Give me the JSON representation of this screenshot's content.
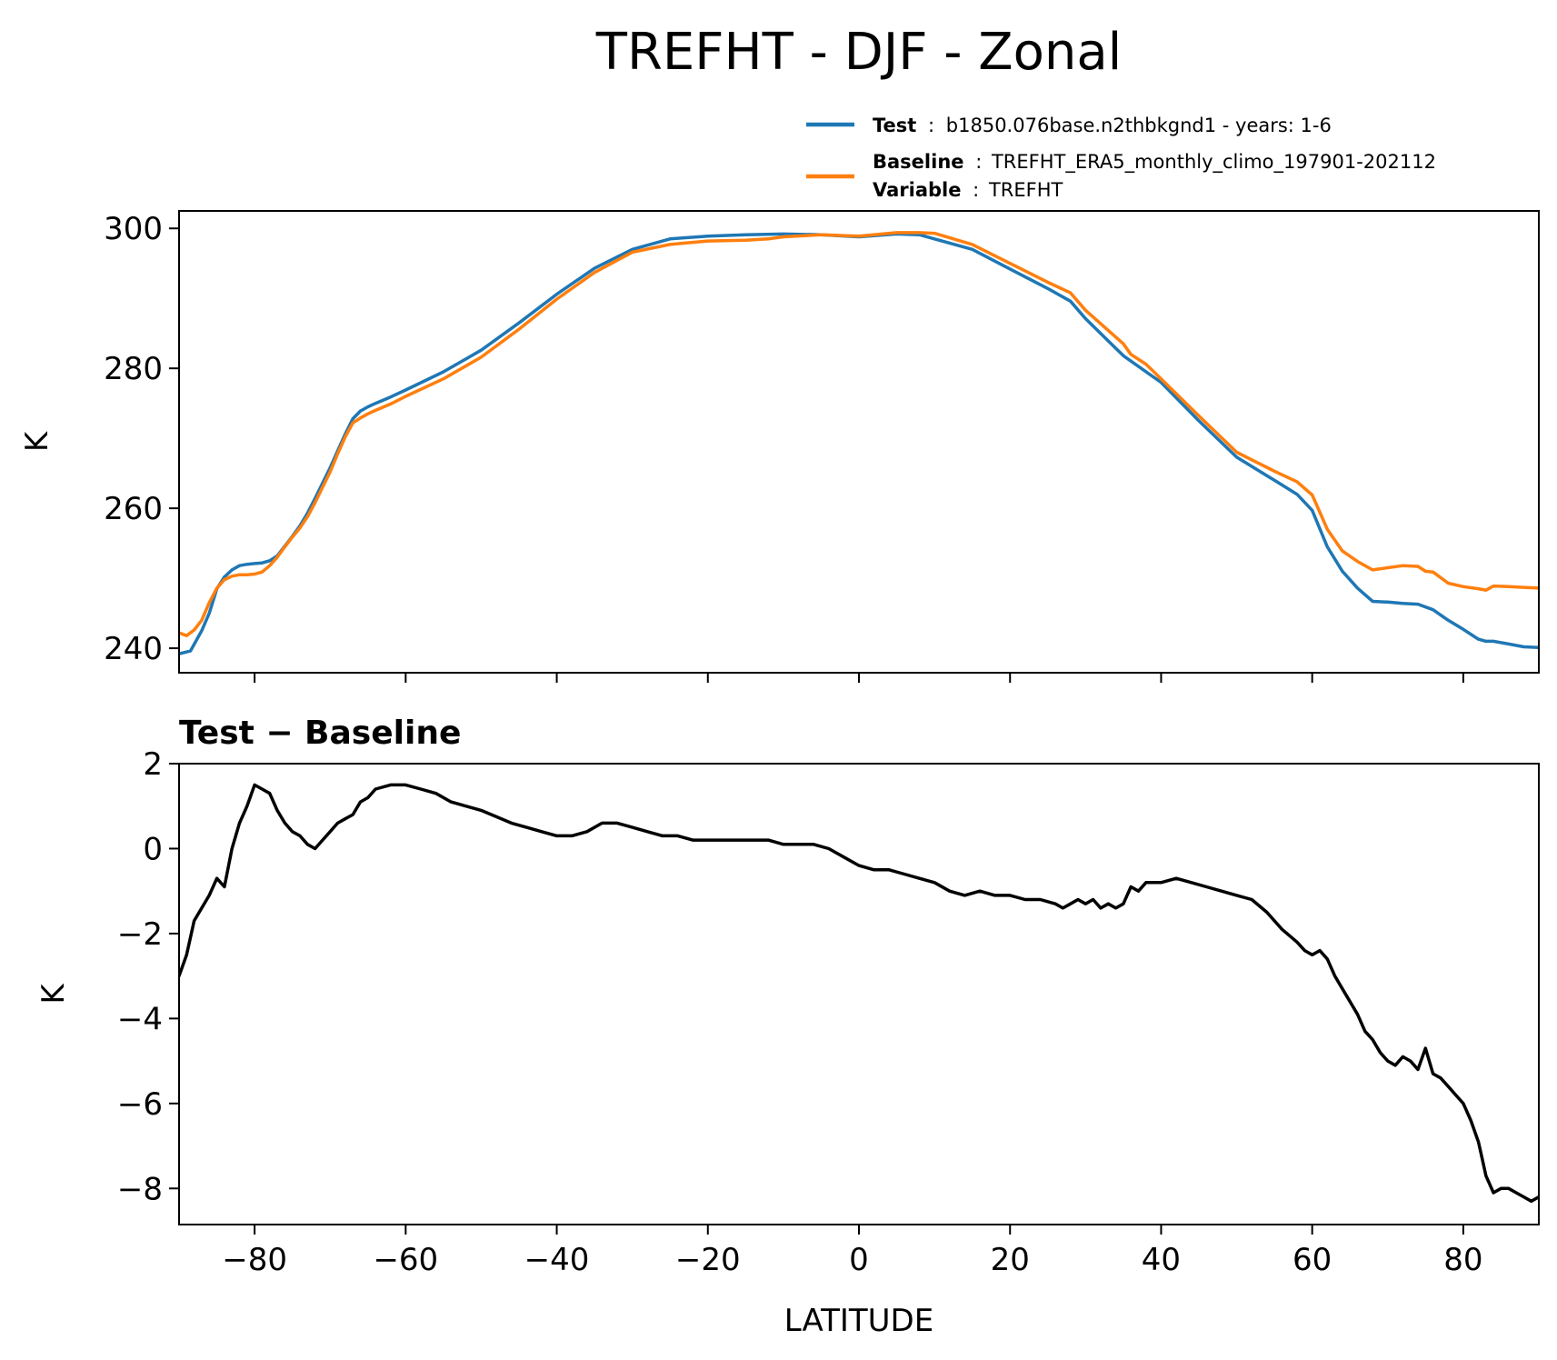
{
  "title": "TREFHT - DJF - Zonal",
  "legend": {
    "test_key": "Test",
    "test_value": "b1850.076base.n2thbkgnd1 - years: 1-6",
    "baseline_key": "Baseline",
    "baseline_value": "TREFHT_ERA5_monthly_climo_197901-202112",
    "variable_key": "Variable",
    "variable_value": "TREFHT",
    "sep": ":"
  },
  "colors": {
    "test": "#1f77b4",
    "baseline": "#ff7f0e",
    "diff": "#000000",
    "axis": "#000000"
  },
  "chart_data": [
    {
      "type": "line",
      "ylabel": "K",
      "xlim": [
        -90,
        90
      ],
      "ylim": [
        236.5,
        302.5
      ],
      "yticks": [
        240,
        260,
        280,
        300
      ],
      "xticks": [
        -80,
        -60,
        -40,
        -20,
        0,
        20,
        40,
        60,
        80
      ],
      "grid": false,
      "legend_position": "above-right",
      "series": [
        {
          "name": "Test",
          "color": "#1f77b4",
          "x": [
            -90,
            -88.5,
            -87,
            -86,
            -85,
            -84,
            -83,
            -82,
            -81,
            -80,
            -79,
            -78,
            -77,
            -76,
            -75,
            -74,
            -73,
            -72,
            -71,
            -70,
            -69,
            -68,
            -67,
            -66,
            -65,
            -64,
            -62,
            -60,
            -55,
            -50,
            -45,
            -40,
            -35,
            -30,
            -25,
            -20,
            -15,
            -10,
            -5,
            0,
            5,
            8,
            10,
            15,
            20,
            25,
            28,
            30,
            35,
            40,
            45,
            50,
            55,
            58,
            60,
            62,
            64,
            66,
            68,
            70,
            72,
            74,
            76,
            78,
            80,
            82,
            83,
            84,
            86,
            88,
            90
          ],
          "y": [
            239.2,
            239.6,
            242.5,
            245,
            248.5,
            250.2,
            251.2,
            251.8,
            252,
            252.1,
            252.2,
            252.5,
            253.2,
            254.6,
            256,
            257.5,
            259.3,
            261.4,
            263.6,
            265.8,
            268.2,
            270.6,
            272.8,
            273.9,
            274.5,
            275.0,
            275.9,
            276.9,
            279.5,
            282.6,
            286.5,
            290.6,
            294.3,
            297.0,
            298.5,
            298.9,
            299.1,
            299.2,
            299.1,
            298.8,
            299.2,
            299.1,
            298.5,
            297.0,
            294.2,
            291.4,
            289.6,
            287.1,
            281.8,
            278.0,
            272.5,
            267.3,
            264.0,
            262.0,
            259.7,
            254.5,
            251.0,
            248.6,
            246.7,
            246.6,
            246.4,
            246.3,
            245.5,
            244.0,
            242.7,
            241.3,
            241.0,
            241.0,
            240.6,
            240.2,
            240.1
          ]
        },
        {
          "name": "Baseline",
          "color": "#ff7f0e",
          "x": [
            -90,
            -89,
            -88,
            -87,
            -86,
            -85,
            -84,
            -83,
            -82,
            -81,
            -80,
            -79,
            -78,
            -77,
            -76,
            -75,
            -74,
            -73,
            -72,
            -71,
            -70,
            -69,
            -68,
            -67,
            -66,
            -65,
            -64,
            -62,
            -60,
            -55,
            -50,
            -45,
            -40,
            -35,
            -30,
            -25,
            -20,
            -15,
            -12,
            -10,
            -5,
            0,
            5,
            8,
            10,
            15,
            20,
            25,
            28,
            30,
            35,
            36,
            38,
            40,
            45,
            50,
            55,
            58,
            60,
            62,
            64,
            66,
            68,
            70,
            72,
            74,
            75,
            76,
            78,
            80,
            82,
            83,
            84,
            86,
            88,
            90
          ],
          "y": [
            242.2,
            241.8,
            242.6,
            244.0,
            246.5,
            248.6,
            249.8,
            250.3,
            250.5,
            250.5,
            250.6,
            250.9,
            251.8,
            253.0,
            254.5,
            255.9,
            257.2,
            258.8,
            260.8,
            263.0,
            265.2,
            267.8,
            270.2,
            272.2,
            272.9,
            273.5,
            274.0,
            274.9,
            276.0,
            278.5,
            281.6,
            285.6,
            289.9,
            293.7,
            296.6,
            297.7,
            298.2,
            298.3,
            298.5,
            298.8,
            299.1,
            298.9,
            299.4,
            299.4,
            299.3,
            297.7,
            295.0,
            292.3,
            290.8,
            288.3,
            283.5,
            282.0,
            280.6,
            278.5,
            273.2,
            268.0,
            265.3,
            263.8,
            261.9,
            257.0,
            253.9,
            252.4,
            251.2,
            251.5,
            251.8,
            251.7,
            251.0,
            250.9,
            249.3,
            248.8,
            248.5,
            248.3,
            248.9,
            248.8,
            248.7,
            248.6
          ]
        }
      ]
    },
    {
      "type": "line",
      "title": "Test − Baseline",
      "xlabel": "LATITUDE",
      "ylabel": "K",
      "xlim": [
        -90,
        90
      ],
      "ylim": [
        -8.85,
        2.0
      ],
      "yticks": [
        2,
        0,
        -2,
        -4,
        -6,
        -8
      ],
      "ytick_labels": [
        "2",
        "0",
        "−2",
        "−4",
        "−6",
        "−8"
      ],
      "xticks": [
        -80,
        -60,
        -40,
        -20,
        0,
        20,
        40,
        60,
        80
      ],
      "xtick_labels": [
        "−80",
        "−60",
        "−40",
        "−20",
        "0",
        "20",
        "40",
        "60",
        "80"
      ],
      "grid": false,
      "series": [
        {
          "name": "Test − Baseline",
          "color": "#000000",
          "x": [
            -90,
            -89,
            -88,
            -87,
            -86,
            -85,
            -84,
            -83,
            -82,
            -81,
            -80,
            -79,
            -78,
            -77,
            -76,
            -75,
            -74,
            -73,
            -72,
            -71,
            -70,
            -69,
            -68,
            -67,
            -66,
            -65,
            -64,
            -62,
            -60,
            -58,
            -56,
            -54,
            -50,
            -46,
            -44,
            -42,
            -40,
            -38,
            -36,
            -34,
            -32,
            -30,
            -28,
            -26,
            -24,
            -22,
            -20,
            -18,
            -16,
            -14,
            -12,
            -10,
            -8,
            -6,
            -4,
            -2,
            0,
            2,
            4,
            6,
            8,
            10,
            12,
            14,
            16,
            18,
            20,
            22,
            24,
            26,
            27,
            28,
            29,
            30,
            31,
            32,
            33,
            34,
            35,
            36,
            37,
            38,
            40,
            42,
            44,
            46,
            48,
            50,
            52,
            54,
            56,
            58,
            59,
            60,
            61,
            62,
            63,
            64,
            65,
            66,
            67,
            68,
            69,
            70,
            71,
            72,
            73,
            74,
            75,
            76,
            77,
            78,
            79,
            80,
            81,
            82,
            82.5,
            83,
            84,
            85,
            86,
            87,
            88,
            89,
            90
          ],
          "y": [
            -3.0,
            -2.5,
            -1.7,
            -1.4,
            -1.1,
            -0.7,
            -0.9,
            0.0,
            0.6,
            1.0,
            1.5,
            1.4,
            1.3,
            0.9,
            0.6,
            0.4,
            0.3,
            0.1,
            0.0,
            0.2,
            0.4,
            0.6,
            0.7,
            0.8,
            1.1,
            1.2,
            1.4,
            1.5,
            1.5,
            1.4,
            1.3,
            1.1,
            0.9,
            0.6,
            0.5,
            0.4,
            0.3,
            0.3,
            0.4,
            0.6,
            0.6,
            0.5,
            0.4,
            0.3,
            0.3,
            0.2,
            0.2,
            0.2,
            0.2,
            0.2,
            0.2,
            0.1,
            0.1,
            0.1,
            0.0,
            -0.2,
            -0.4,
            -0.5,
            -0.5,
            -0.6,
            -0.7,
            -0.8,
            -1.0,
            -1.1,
            -1.0,
            -1.1,
            -1.1,
            -1.2,
            -1.2,
            -1.3,
            -1.4,
            -1.3,
            -1.2,
            -1.3,
            -1.2,
            -1.4,
            -1.3,
            -1.4,
            -1.3,
            -0.9,
            -1.0,
            -0.8,
            -0.8,
            -0.7,
            -0.8,
            -0.9,
            -1.0,
            -1.1,
            -1.2,
            -1.5,
            -1.9,
            -2.2,
            -2.4,
            -2.5,
            -2.4,
            -2.6,
            -3.0,
            -3.3,
            -3.6,
            -3.9,
            -4.3,
            -4.5,
            -4.8,
            -5.0,
            -5.1,
            -4.9,
            -5.0,
            -5.2,
            -4.7,
            -5.3,
            -5.4,
            -5.6,
            -5.8,
            -6.0,
            -6.4,
            -6.9,
            -7.3,
            -7.7,
            -8.1,
            -8.0,
            -8.0,
            -8.1,
            -8.2,
            -8.3,
            -8.2
          ]
        }
      ]
    }
  ]
}
